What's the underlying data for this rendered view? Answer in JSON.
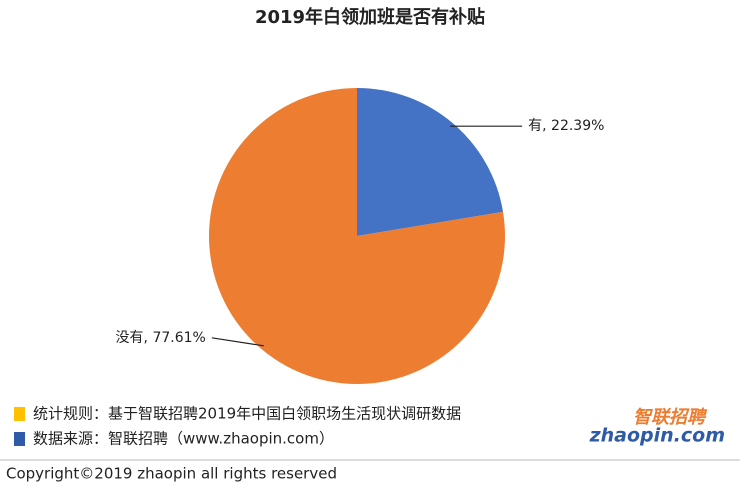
{
  "chart_data": {
    "type": "pie",
    "title": "2019年白领加班是否有补贴",
    "categories": [
      "有",
      "没有"
    ],
    "values": [
      22.39,
      77.61
    ],
    "value_labels": [
      "有, 22.39%",
      "没有, 77.61%"
    ],
    "colors": [
      "#4472c4",
      "#ed7d31"
    ]
  },
  "notes": [
    {
      "text": "统计规则：基于智联招聘2019年中国白领职场生活现状调研数据",
      "color": "#ffc000"
    },
    {
      "text": "数据来源：智联招聘（www.zhaopin.com）",
      "color": "#2e5aa8"
    }
  ],
  "logo": {
    "name": "智联招聘",
    "domain": "zhaopin.com"
  },
  "copyright": "Copyright©2019 zhaopin all rights reserved"
}
